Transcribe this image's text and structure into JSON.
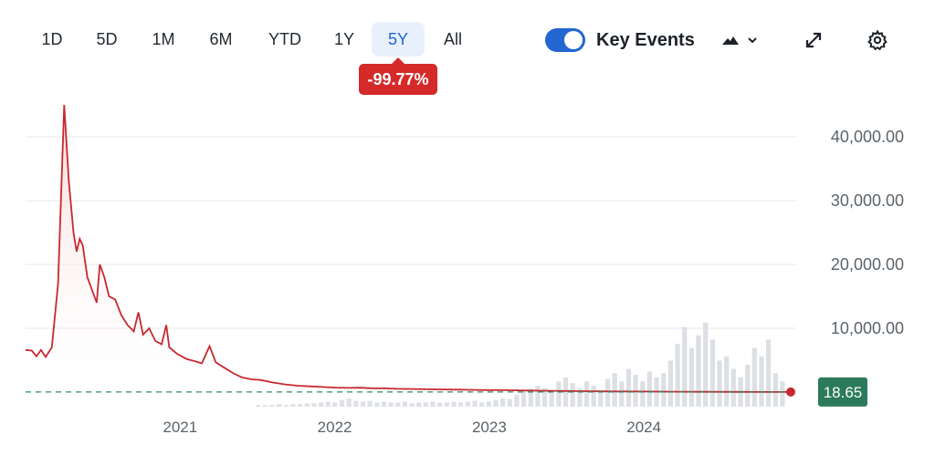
{
  "toolbar": {
    "ranges": [
      "1D",
      "5D",
      "1M",
      "6M",
      "YTD",
      "1Y",
      "5Y",
      "All"
    ],
    "active_range": "5Y",
    "change_badge": "-99.77%",
    "key_events_label": "Key Events",
    "key_events_on": true,
    "icons": [
      "mountain-chart-icon",
      "chevron-down-icon",
      "expand-icon",
      "gear-icon"
    ]
  },
  "colors": {
    "line": "#c8282f",
    "area_top": "#f6d3d5",
    "volume": "#dcdfe3",
    "baseline": "#2e8b63",
    "price_flag": "#2c7a5c",
    "badge": "#d42a2a",
    "toggle": "#2366d1",
    "active_tab_bg": "#e8f1fb",
    "active_tab_text": "#1f64d6"
  },
  "chart_data": {
    "type": "area",
    "title": "",
    "ylabel": "",
    "xlabel": "",
    "x_tick_labels": [
      "2021",
      "2022",
      "2023",
      "2024"
    ],
    "y_tick_labels": [
      "10,000.00",
      "20,000.00",
      "30,000.00",
      "40,000.00"
    ],
    "y_ticks": [
      10000,
      20000,
      30000,
      40000
    ],
    "ylim": [
      -4000,
      48000
    ],
    "xlim": [
      2020.0,
      2024.95
    ],
    "grid": true,
    "legend": "none",
    "last_price": 18.65,
    "last_price_label": "18.65",
    "series": [
      {
        "values": [
          [
            2020.0,
            6600
          ],
          [
            2020.04,
            6500
          ],
          [
            2020.07,
            5600
          ],
          [
            2020.1,
            6600
          ],
          [
            2020.13,
            5500
          ],
          [
            2020.17,
            7000
          ],
          [
            2020.21,
            17000
          ],
          [
            2020.25,
            45000
          ],
          [
            2020.28,
            33000
          ],
          [
            2020.31,
            25000
          ],
          [
            2020.33,
            22000
          ],
          [
            2020.35,
            24000
          ],
          [
            2020.37,
            23000
          ],
          [
            2020.4,
            18000
          ],
          [
            2020.43,
            16000
          ],
          [
            2020.46,
            14000
          ],
          [
            2020.48,
            20000
          ],
          [
            2020.51,
            18000
          ],
          [
            2020.54,
            15000
          ],
          [
            2020.58,
            14500
          ],
          [
            2020.62,
            12000
          ],
          [
            2020.66,
            10500
          ],
          [
            2020.7,
            9500
          ],
          [
            2020.73,
            12500
          ],
          [
            2020.76,
            9000
          ],
          [
            2020.8,
            10000
          ],
          [
            2020.84,
            8000
          ],
          [
            2020.88,
            7500
          ],
          [
            2020.91,
            10500
          ],
          [
            2020.93,
            7000
          ],
          [
            2020.98,
            6000
          ],
          [
            2021.04,
            5200
          ],
          [
            2021.1,
            4800
          ],
          [
            2021.14,
            4500
          ],
          [
            2021.19,
            7200
          ],
          [
            2021.23,
            4700
          ],
          [
            2021.28,
            3900
          ],
          [
            2021.34,
            3000
          ],
          [
            2021.4,
            2300
          ],
          [
            2021.46,
            2000
          ],
          [
            2021.52,
            1900
          ],
          [
            2021.6,
            1500
          ],
          [
            2021.68,
            1200
          ],
          [
            2021.76,
            1000
          ],
          [
            2021.84,
            900
          ],
          [
            2021.92,
            800
          ],
          [
            2022.0,
            700
          ],
          [
            2022.08,
            650
          ],
          [
            2022.16,
            680
          ],
          [
            2022.24,
            600
          ],
          [
            2022.32,
            580
          ],
          [
            2022.4,
            520
          ],
          [
            2022.5,
            480
          ],
          [
            2022.6,
            450
          ],
          [
            2022.7,
            420
          ],
          [
            2022.8,
            380
          ],
          [
            2022.9,
            350
          ],
          [
            2023.0,
            320
          ],
          [
            2023.1,
            300
          ],
          [
            2023.25,
            250
          ],
          [
            2023.4,
            200
          ],
          [
            2023.6,
            140
          ],
          [
            2023.8,
            100
          ],
          [
            2024.0,
            80
          ],
          [
            2024.2,
            60
          ],
          [
            2024.4,
            40
          ],
          [
            2024.6,
            25
          ],
          [
            2024.8,
            20
          ],
          [
            2024.95,
            18.65
          ]
        ]
      }
    ],
    "volume_relative": [
      0.02,
      0.02,
      0.02,
      0.03,
      0.02,
      0.03,
      0.03,
      0.04,
      0.04,
      0.05,
      0.06,
      0.05,
      0.08,
      0.1,
      0.07,
      0.06,
      0.07,
      0.05,
      0.06,
      0.05,
      0.05,
      0.06,
      0.04,
      0.05,
      0.05,
      0.06,
      0.05,
      0.05,
      0.06,
      0.05,
      0.06,
      0.07,
      0.05,
      0.06,
      0.08,
      0.1,
      0.09,
      0.14,
      0.18,
      0.22,
      0.25,
      0.22,
      0.18,
      0.3,
      0.35,
      0.28,
      0.22,
      0.3,
      0.25,
      0.2,
      0.33,
      0.4,
      0.3,
      0.45,
      0.38,
      0.3,
      0.42,
      0.35,
      0.4,
      0.55,
      0.75,
      0.95,
      0.7,
      0.85,
      1.0,
      0.8,
      0.55,
      0.6,
      0.45,
      0.35,
      0.5,
      0.7,
      0.6,
      0.8,
      0.4,
      0.3
    ]
  }
}
